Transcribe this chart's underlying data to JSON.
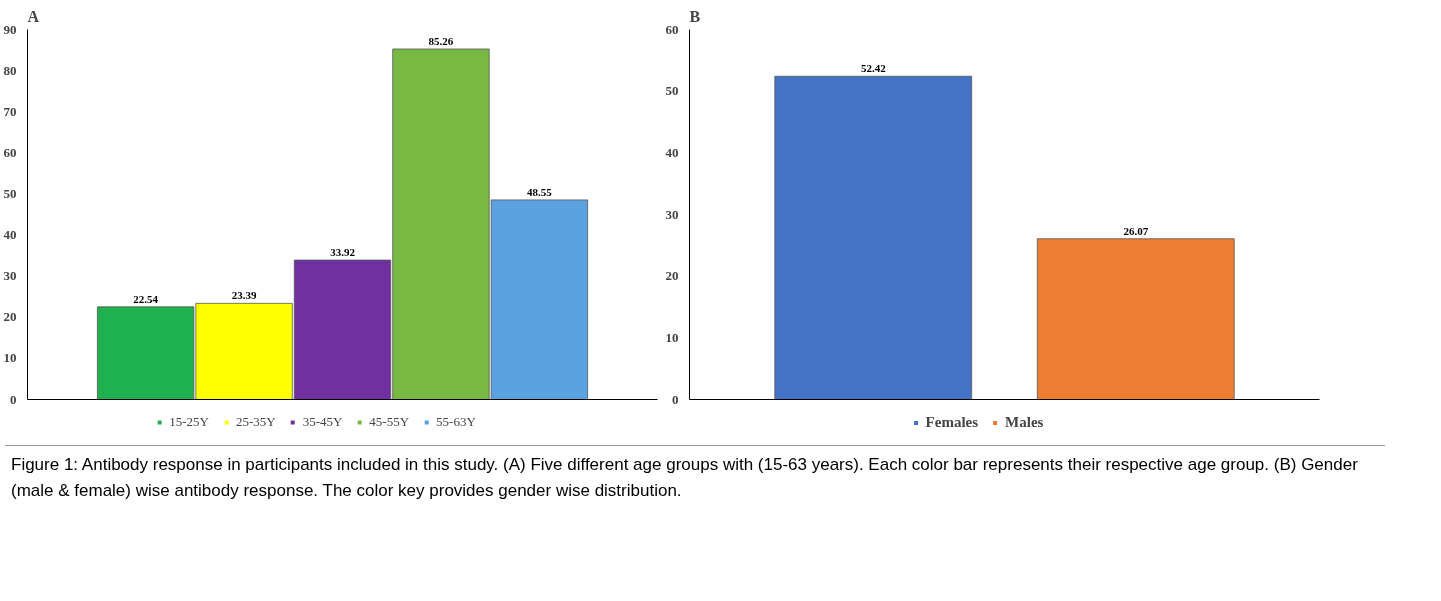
{
  "chart_data": [
    {
      "type": "bar",
      "title": "A",
      "categories": [
        null,
        null,
        null,
        null,
        null
      ],
      "series": [
        {
          "name": "15-25Y",
          "color": "#1fb04f",
          "values": [
            22.54,
            null,
            null,
            null,
            null
          ]
        },
        {
          "name": "25-35Y",
          "color": "#ffff00",
          "values": [
            null,
            23.39,
            null,
            null,
            null
          ]
        },
        {
          "name": "35-45Y",
          "color": "#7030a0",
          "values": [
            null,
            null,
            33.92,
            null,
            null
          ]
        },
        {
          "name": "45-55Y",
          "color": "#77b943",
          "values": [
            null,
            null,
            null,
            85.26,
            null
          ]
        },
        {
          "name": "55-63Y",
          "color": "#5ba3e0",
          "values": [
            null,
            null,
            null,
            null,
            48.55
          ]
        }
      ],
      "ylim": [
        0,
        90
      ],
      "yticks": [
        0,
        10,
        20,
        30,
        40,
        50,
        60,
        70,
        80,
        90
      ],
      "grid": false,
      "legend": "bottom",
      "tick_labels": "y",
      "data_labels": true,
      "annotations": [
        "Figure 1: Antibody response in participants included in this study. (A) Five different age groups with (15-63 years). Each color bar represents their respective age group. (B) Gender (male & female) wise antibody response. The color key provides gender wise distribution."
      ]
    },
    {
      "type": "bar",
      "title": "B",
      "categories": [
        null,
        null
      ],
      "series": [
        {
          "name": "Females",
          "color": "#4472c4",
          "values": [
            52.42,
            null
          ]
        },
        {
          "name": "Males",
          "color": "#ed7d31",
          "values": [
            null,
            26.07
          ]
        }
      ],
      "ylim": [
        0,
        60
      ],
      "yticks": [
        0,
        10,
        20,
        30,
        40,
        50,
        60
      ],
      "grid": false,
      "legend": "bottom",
      "tick_labels": "y",
      "data_labels": true
    }
  ]
}
